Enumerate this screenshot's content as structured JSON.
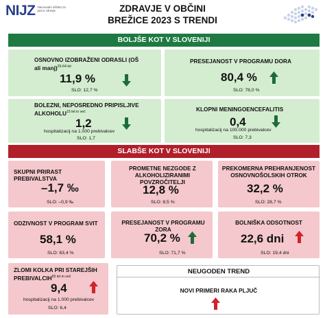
{
  "header": {
    "logo_text_ni": "NI",
    "logo_text_jz": "JZ",
    "logo_subtitle": "Nacionalni inštitut za javno zdravje",
    "title_line1": "ZDRAVJE V OBČINI",
    "title_line2": "BREŽICE 2023 S TRENDI"
  },
  "colors": {
    "green_band": "#1e7a42",
    "red_band": "#b01f2a",
    "green_card": "#d4edd0",
    "red_card": "#f4c8cc",
    "arrow_green": "#1e6b3a",
    "arrow_red": "#d0232b"
  },
  "better": {
    "band_label": "BOLJŠE KOT V SLOVENIJI",
    "items": [
      {
        "label": "OSNOVNO IZOBRAŽENI ODRASLI (OŠ ali manj)",
        "sup": "25-64 let",
        "value": "11,9 %",
        "slo": "SLO: 12,7 %",
        "trend": "down",
        "arrow": "green-arrow-down-icon"
      },
      {
        "label": "PRESEJANOST V PROGRAMU DORA",
        "value": "80,4 %",
        "slo": "SLO: 78,0 %",
        "trend": "up",
        "arrow": "green-arrow-up-icon"
      },
      {
        "label": "BOLEZNI, NEPOSREDNO PRIPISLJIVE ALKOHOLU",
        "sup": "15 let in več",
        "value": "1,2",
        "sub": "hospitalizacij na 1.000 prebivalcev",
        "slo": "SLO: 1,7",
        "trend": "down",
        "arrow": "green-arrow-down-icon"
      },
      {
        "label": "KLOPNI MENINGOENCEFALITIS",
        "value": "0,4",
        "sub": "hospitalizacij na 100.000 prebivalcev",
        "slo": "SLO: 7,3",
        "trend": "down",
        "arrow": "green-arrow-down-icon"
      }
    ]
  },
  "worse": {
    "band_label": "SLABŠE KOT V SLOVENIJI",
    "items": [
      {
        "label": "SKUPNI PRIRAST PREBIVALSTVA",
        "value": "–1,7 ‰",
        "slo": "SLO: –0,9 ‰"
      },
      {
        "label": "PROMETNE NEZGODE Z ALKOHOLIZIRANIMI POVZROČITELJI",
        "value": "12,8 %",
        "slo": "SLO: 8,5 %"
      },
      {
        "label": "PREKOMERNA PREHRANJENOST OSNOVNOŠOLSKIH OTROK",
        "value": "32,2 %",
        "slo": "SLO: 28,7 %"
      },
      {
        "label": "ODZIVNOST V PROGRAM SVIT",
        "value": "58,1 %",
        "slo": "SLO: 63,4 %"
      },
      {
        "label": "PRESEJANOST V PROGRAMU ZORA",
        "value": "70,2 %",
        "slo": "SLO: 71,7 %",
        "trend": "up"
      },
      {
        "label": "BOLNIŠKA ODSOTNOST",
        "value": "22,6 dni",
        "slo": "SLO: 19,4 dni",
        "trend": "up"
      },
      {
        "label": "ZLOMI KOLKA PRI STAREJŠIH PREBIVALCIH",
        "sup": "65 let in več",
        "value": "9,4",
        "sub": "hospitalizacij na 1.000 prebivalcev",
        "slo": "SLO: 6,4",
        "trend": "up"
      }
    ]
  },
  "unfavorable": {
    "title": "NEUGODEN TREND",
    "items": [
      {
        "label": "NOVI PRIMERI RAKA PLJUČ",
        "trend": "up"
      }
    ]
  }
}
